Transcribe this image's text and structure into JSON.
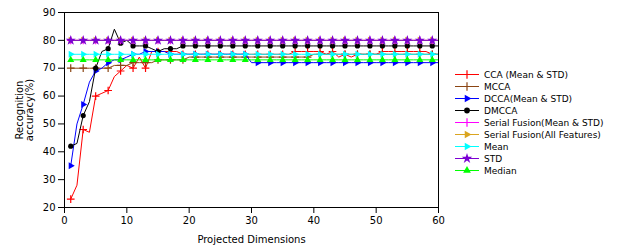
{
  "chart_data": {
    "type": "line",
    "xlabel": "Projected Dimensions",
    "ylabel": "Recognition\naccuracy(%)",
    "xlim": [
      0,
      60
    ],
    "ylim": [
      20,
      90
    ],
    "xticks": [
      0,
      10,
      20,
      30,
      40,
      50,
      60
    ],
    "yticks": [
      20,
      30,
      40,
      50,
      60,
      70,
      80,
      90
    ],
    "grid": false,
    "legend": "right",
    "x": [
      1,
      2,
      3,
      4,
      5,
      6,
      7,
      8,
      9,
      10,
      11,
      12,
      13,
      14,
      15,
      16,
      17,
      18,
      19,
      20,
      21,
      22,
      23,
      24,
      25,
      26,
      27,
      28,
      29,
      30,
      31,
      32,
      33,
      34,
      35,
      36,
      37,
      38,
      39,
      40,
      41,
      42,
      43,
      44,
      45,
      46,
      47,
      48,
      49,
      50,
      51,
      52,
      53,
      54,
      55,
      56,
      57,
      58,
      59,
      60
    ],
    "series": [
      {
        "name": "CCA (Mean & STD)",
        "color": "#ff0000",
        "marker": "plus",
        "values": [
          23,
          28,
          48,
          47,
          60,
          61,
          62,
          67,
          69,
          71,
          70,
          74,
          70,
          76,
          76,
          76,
          76,
          76,
          75,
          75,
          75,
          75,
          75,
          75,
          75,
          75,
          75,
          75,
          75,
          75,
          75,
          75,
          75,
          75,
          75,
          75,
          76,
          76,
          76,
          76,
          76,
          75,
          76,
          74,
          75,
          74,
          75,
          75,
          75,
          75,
          76,
          76,
          76,
          76,
          76,
          76,
          76,
          76,
          75,
          75
        ]
      },
      {
        "name": "MCCA",
        "color": "#8B4513",
        "marker": "plus",
        "values": [
          70,
          70,
          70,
          70,
          70,
          70,
          70,
          71,
          71,
          71,
          72,
          72,
          72,
          72,
          73,
          73,
          73,
          73,
          73,
          74,
          74,
          74,
          74,
          74,
          74,
          74,
          74,
          74,
          74,
          74,
          74,
          74,
          74,
          74,
          74,
          74,
          74,
          74,
          74,
          75,
          75,
          75,
          75,
          75,
          75,
          75,
          75,
          75,
          75,
          75,
          75,
          75,
          75,
          75,
          75,
          75,
          75,
          75,
          75,
          75
        ]
      },
      {
        "name": "DCCA(Mean & STD)",
        "color": "#0000ff",
        "marker": "triangle-right",
        "values": [
          35,
          50,
          57,
          65,
          69,
          70,
          72,
          73,
          73,
          74,
          75,
          75,
          76,
          76,
          76,
          76,
          75,
          75,
          75,
          75,
          75,
          75,
          75,
          75,
          75,
          75,
          75,
          75,
          75,
          72,
          72,
          72,
          72,
          72,
          72,
          72,
          72,
          72,
          72,
          72,
          72,
          72,
          72,
          72,
          72,
          72,
          72,
          72,
          72,
          72,
          72,
          72,
          72,
          72,
          72,
          72,
          72,
          72,
          72,
          72
        ]
      },
      {
        "name": "DMCCA",
        "color": "#000000",
        "marker": "circle",
        "values": [
          42,
          43,
          53,
          58,
          70,
          76,
          77,
          84,
          79,
          80,
          78,
          78,
          78,
          77,
          76,
          77,
          77,
          77,
          78,
          78,
          78,
          78,
          78,
          78,
          78,
          78,
          78,
          78,
          78,
          78,
          78,
          78,
          78,
          78,
          78,
          78,
          78,
          78,
          78,
          78,
          78,
          78,
          78,
          78,
          78,
          78,
          78,
          78,
          78,
          78,
          78,
          78,
          78,
          78,
          78,
          78,
          78,
          78,
          78,
          78
        ]
      },
      {
        "name": "Serial Fusion(Mean & STD)",
        "color": "#ff00ff",
        "marker": "plus",
        "values": [
          80,
          80,
          80,
          80,
          80,
          80,
          80,
          80,
          80,
          80,
          80,
          80,
          80,
          80,
          80,
          80,
          80,
          80,
          80,
          80,
          80,
          80,
          80,
          80,
          80,
          80,
          80,
          80,
          80,
          80,
          80,
          80,
          80,
          80,
          80,
          80,
          80,
          80,
          80,
          80,
          80,
          80,
          80,
          80,
          80,
          80,
          80,
          80,
          80,
          80,
          80,
          80,
          80,
          80,
          80,
          80,
          80,
          80,
          80,
          80
        ]
      },
      {
        "name": "Serial Fusion(All Features)",
        "color": "#DAA520",
        "marker": "triangle-right",
        "values": [
          80,
          80,
          80,
          80,
          80,
          80,
          80,
          80,
          80,
          80,
          80,
          80,
          80,
          80,
          80,
          80,
          80,
          80,
          80,
          80,
          80,
          80,
          80,
          80,
          80,
          80,
          80,
          80,
          80,
          80,
          80,
          80,
          80,
          80,
          80,
          80,
          80,
          80,
          80,
          80,
          80,
          80,
          80,
          80,
          80,
          80,
          80,
          80,
          80,
          80,
          80,
          80,
          80,
          80,
          80,
          80,
          80,
          80,
          80,
          80
        ]
      },
      {
        "name": "Mean",
        "color": "#00ffff",
        "marker": "triangle-right",
        "values": [
          75,
          75,
          75,
          75,
          75,
          75,
          75,
          75,
          75,
          75,
          75,
          75,
          75,
          75,
          75,
          75,
          75,
          75,
          75,
          75,
          75,
          75,
          75,
          75,
          75,
          75,
          75,
          75,
          75,
          75,
          75,
          75,
          75,
          75,
          75,
          75,
          75,
          75,
          75,
          75,
          75,
          75,
          75,
          75,
          75,
          75,
          75,
          75,
          75,
          75,
          75,
          75,
          75,
          75,
          75,
          75,
          75,
          75,
          75,
          75
        ]
      },
      {
        "name": "STD",
        "color": "#7B00D4",
        "marker": "star",
        "values": [
          80,
          80,
          80,
          80,
          80,
          80,
          80,
          80,
          80,
          80,
          80,
          80,
          80,
          80,
          80,
          80,
          80,
          80,
          80,
          80,
          80,
          80,
          80,
          80,
          80,
          80,
          80,
          80,
          80,
          80,
          80,
          80,
          80,
          80,
          80,
          80,
          80,
          80,
          80,
          80,
          80,
          80,
          80,
          80,
          80,
          80,
          80,
          80,
          80,
          80,
          80,
          80,
          80,
          80,
          80,
          80,
          80,
          80,
          80,
          80
        ]
      },
      {
        "name": "Median",
        "color": "#00ff00",
        "marker": "triangle-up",
        "values": [
          73,
          73,
          73,
          73,
          73,
          73,
          73,
          73,
          73,
          73,
          73,
          73,
          73,
          73,
          73,
          73,
          73,
          73,
          73,
          73,
          73,
          73,
          73,
          73,
          73,
          73,
          73,
          73,
          73,
          73,
          73,
          73,
          73,
          73,
          73,
          73,
          73,
          73,
          73,
          73,
          73,
          73,
          73,
          73,
          73,
          73,
          73,
          73,
          73,
          73,
          73,
          73,
          73,
          73,
          73,
          73,
          73,
          73,
          73,
          73
        ]
      }
    ]
  }
}
